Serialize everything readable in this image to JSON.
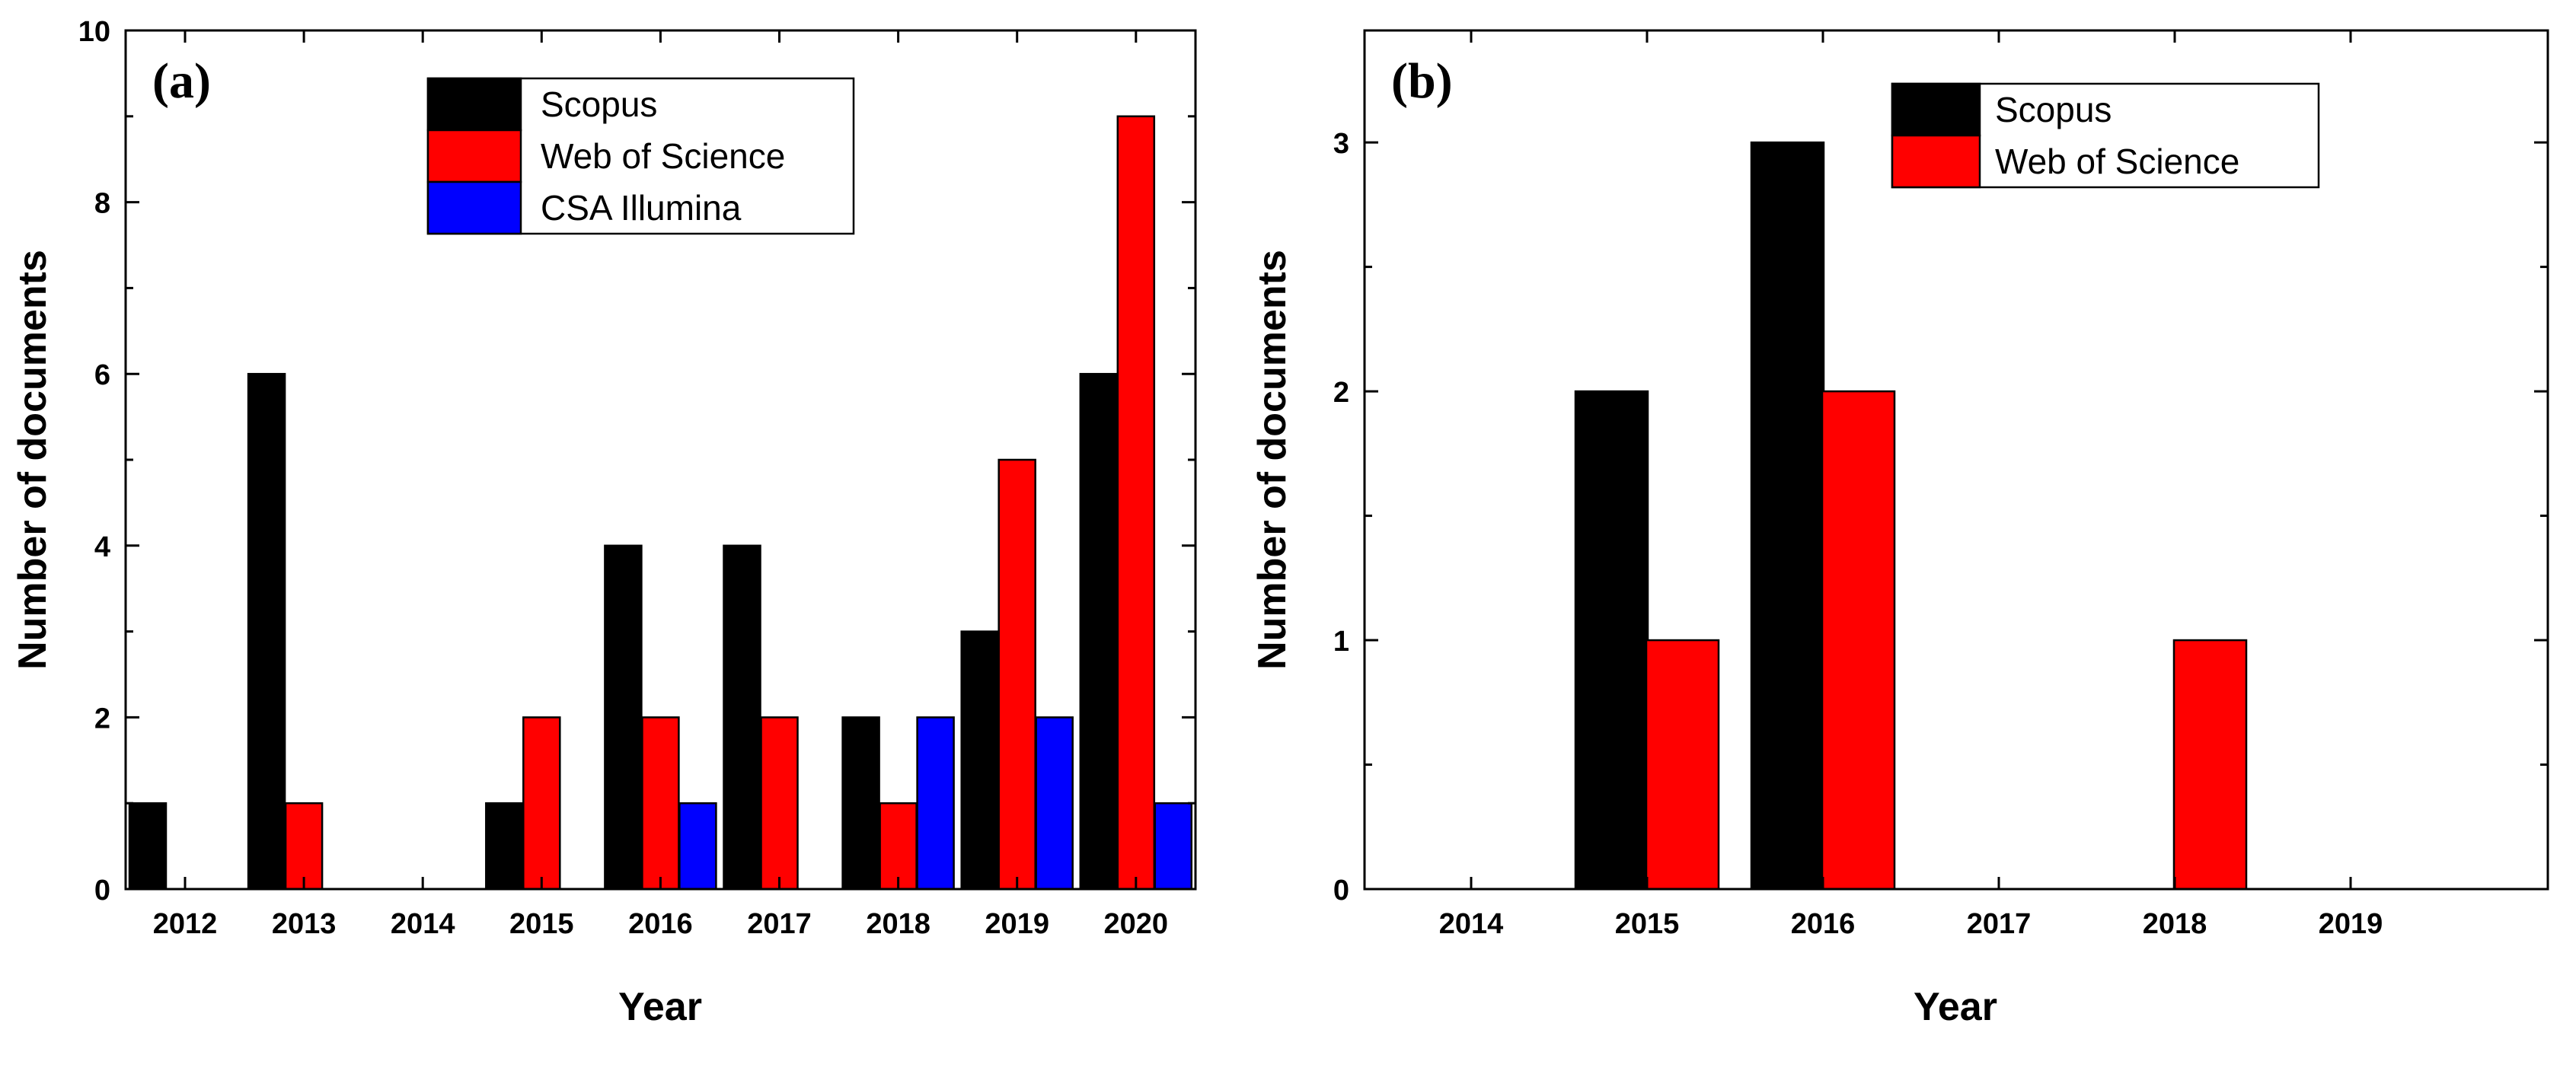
{
  "chart_data": [
    {
      "type": "bar",
      "panel_label": "(a)",
      "title": "",
      "xlabel": "Year",
      "ylabel": "Number of documents",
      "categories": [
        "2012",
        "2013",
        "2014",
        "2015",
        "2016",
        "2017",
        "2018",
        "2019",
        "2020"
      ],
      "series": [
        {
          "name": "Scopus",
          "color": "#000000",
          "values": [
            1,
            6,
            0,
            1,
            4,
            4,
            2,
            3,
            6
          ]
        },
        {
          "name": "Web of Science",
          "color": "#ff0000",
          "values": [
            0,
            1,
            0,
            2,
            2,
            2,
            1,
            5,
            9
          ]
        },
        {
          "name": "CSA Illumina",
          "color": "#0000ff",
          "values": [
            0,
            0,
            0,
            0,
            1,
            0,
            2,
            2,
            1
          ]
        }
      ],
      "ylim": [
        0,
        10
      ],
      "yticks": [
        "0",
        "2",
        "4",
        "6",
        "8",
        "10"
      ],
      "grid": false,
      "legend_position": "top-right"
    },
    {
      "type": "bar",
      "panel_label": "(b)",
      "title": "",
      "xlabel": "Year",
      "ylabel": "Number of documents",
      "categories": [
        "2014",
        "2015",
        "2016",
        "2017",
        "2018",
        "2019"
      ],
      "series": [
        {
          "name": "Scopus",
          "color": "#000000",
          "values": [
            0,
            2,
            3,
            0,
            0,
            0
          ]
        },
        {
          "name": "Web of Science",
          "color": "#ff0000",
          "values": [
            0,
            1,
            2,
            0,
            1,
            0
          ]
        }
      ],
      "ylim": [
        0,
        3.45
      ],
      "yticks": [
        "0",
        "1",
        "2",
        "3"
      ],
      "grid": false,
      "legend_position": "top-right"
    }
  ]
}
